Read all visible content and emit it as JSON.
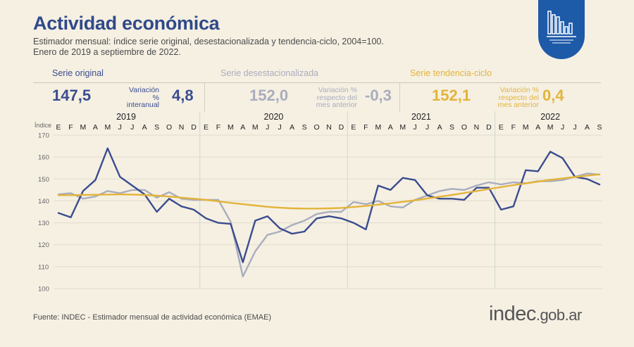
{
  "header": {
    "title": "Actividad económica",
    "subtitle_line1": "Estimador mensual: índice serie original, desestacionalizada y tendencia-ciclo, 2004=100.",
    "subtitle_line2": "Enero de 2019 a septiembre de 2022."
  },
  "panels": [
    {
      "name": "Serie original",
      "value": "147,5",
      "var_label_1": "Variación %",
      "var_label_2": "interanual",
      "var_label_3": "",
      "var_value": "4,8",
      "color": "#3a4d8f"
    },
    {
      "name": "Serie desestacionalizada",
      "value": "152,0",
      "var_label_1": "Variación %",
      "var_label_2": "respecto del",
      "var_label_3": "mes anterior",
      "var_value": "-0,3",
      "color": "#a9adbd"
    },
    {
      "name": "Serie tendencia-ciclo",
      "value": "152,1",
      "var_label_1": "Variación %",
      "var_label_2": "respecto del",
      "var_label_3": "mes anterior",
      "var_value": "0,4",
      "color": "#e2b43b"
    }
  ],
  "footer": {
    "source": "Fuente: INDEC - Estimador mensual de actividad económica (EMAE)",
    "brand_main": "indec",
    "brand_suffix": ".gob.ar"
  },
  "chart_data": {
    "type": "line",
    "ylabel": "Índice",
    "ylim": [
      100,
      170
    ],
    "yticks": [
      100,
      110,
      120,
      130,
      140,
      150,
      160,
      170
    ],
    "years": [
      "2019",
      "2020",
      "2021",
      "2022"
    ],
    "months": [
      "E",
      "F",
      "M",
      "A",
      "M",
      "J",
      "J",
      "A",
      "S",
      "O",
      "N",
      "D",
      "E",
      "F",
      "M",
      "A",
      "M",
      "J",
      "J",
      "A",
      "S",
      "O",
      "N",
      "D",
      "E",
      "F",
      "M",
      "A",
      "M",
      "J",
      "J",
      "A",
      "S",
      "O",
      "N",
      "D",
      "E",
      "F",
      "M",
      "A",
      "M",
      "J",
      "J",
      "A",
      "S"
    ],
    "series": [
      {
        "name": "Serie original",
        "color": "#3a4d8f",
        "values": [
          134.5,
          132.5,
          144.5,
          149.5,
          164,
          151,
          147,
          143,
          135,
          141,
          137.5,
          136,
          132,
          130,
          129.5,
          112,
          131,
          133,
          127.5,
          125,
          126,
          132,
          133,
          132,
          130,
          127,
          147,
          145,
          150.5,
          149.5,
          142.5,
          141,
          141,
          140.5,
          146,
          146,
          136,
          137.5,
          154,
          153.5,
          162.5,
          159.5,
          151,
          150,
          147.5
        ]
      },
      {
        "name": "Serie desestacionalizada",
        "color": "#a9adbd",
        "values": [
          143,
          143.5,
          141,
          142,
          144.5,
          143.5,
          145,
          145,
          141.5,
          144,
          141,
          140.5,
          140.5,
          140.5,
          130.5,
          105.5,
          117,
          124.5,
          126,
          129,
          131,
          134,
          135,
          135,
          139.5,
          138.5,
          140,
          137.5,
          137,
          140.5,
          142.5,
          144.5,
          145.5,
          145,
          147,
          148.5,
          147.5,
          148.5,
          148,
          149,
          149,
          149.5,
          151,
          152.5,
          152
        ]
      },
      {
        "name": "Serie tendencia-ciclo",
        "color": "#e2b43b",
        "values": [
          142.6,
          142.6,
          142.7,
          142.8,
          142.9,
          143,
          142.9,
          142.7,
          142.4,
          142,
          141.5,
          141,
          140.5,
          139.8,
          139.1,
          138.5,
          137.9,
          137.3,
          136.9,
          136.6,
          136.5,
          136.5,
          136.6,
          136.8,
          137.2,
          137.7,
          138.3,
          138.9,
          139.6,
          140.3,
          141.1,
          141.9,
          142.7,
          143.6,
          144.5,
          145.4,
          146.3,
          147.2,
          148,
          148.8,
          149.6,
          150.3,
          150.9,
          151.5,
          152.1
        ]
      }
    ]
  }
}
